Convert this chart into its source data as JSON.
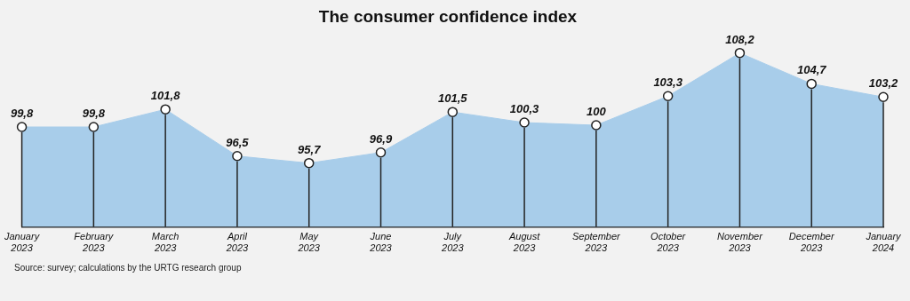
{
  "chart_data": {
    "type": "area",
    "title": "The consumer confidence index",
    "categories": [
      "January 2023",
      "February 2023",
      "March 2023",
      "April 2023",
      "May 2023",
      "June 2023",
      "July 2023",
      "August 2023",
      "September 2023",
      "October 2023",
      "November 2023",
      "December 2023",
      "January 2024"
    ],
    "series": [
      {
        "color": "#a8cdea",
        "values": [
          99.8,
          99.8,
          101.8,
          96.5,
          95.7,
          96.9,
          101.5,
          100.3,
          100,
          103.3,
          108.2,
          104.7,
          103.2
        ],
        "value_labels": [
          "99,8",
          "99,8",
          "101,8",
          "96,5",
          "95,7",
          "96,9",
          "101,5",
          "100,3",
          "100",
          "103,3",
          "108,2",
          "104,7",
          "103,2"
        ]
      }
    ],
    "tick_labels": "x",
    "grid": false,
    "legend": false,
    "marker": "circle",
    "annotations": [
      "Source: survey; calculations by the URTG research group"
    ]
  }
}
